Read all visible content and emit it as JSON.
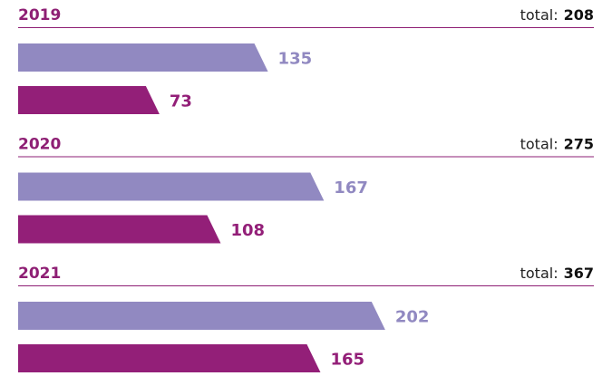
{
  "chart_data": {
    "type": "bar",
    "orientation": "horizontal",
    "categories": [
      "2019",
      "2020",
      "2021"
    ],
    "total_label": "total:",
    "totals": [
      208,
      275,
      367
    ],
    "series": [
      {
        "color": "#9189c1",
        "values": [
          135,
          167,
          202
        ]
      },
      {
        "color": "#931f78",
        "values": [
          73,
          108,
          165
        ]
      }
    ]
  }
}
